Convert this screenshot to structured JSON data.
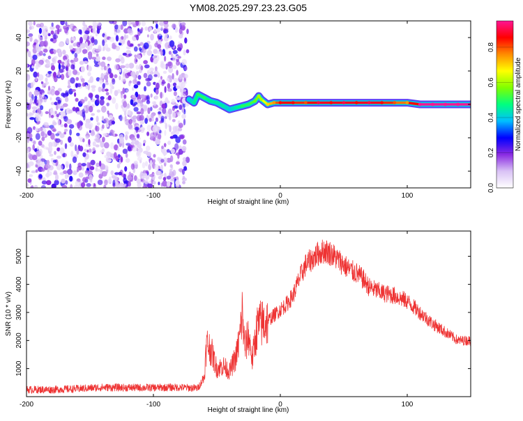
{
  "figure_title": "YM08.2025.297.23.23.G05",
  "chart_data": [
    {
      "type": "heatmap",
      "title": "YM08.2025.297.23.23.G05",
      "xlabel": "Height of straight line (km)",
      "ylabel": "Frequency (Hz)",
      "xlim": [
        -200,
        150
      ],
      "ylim": [
        -50,
        50
      ],
      "xticks": [
        -200,
        -100,
        0,
        100
      ],
      "xtick_labels": [
        "-200",
        "-100",
        "0",
        "100"
      ],
      "yticks": [
        -40,
        -20,
        0,
        20,
        40
      ],
      "ytick_labels": [
        "-40",
        "-20",
        "0",
        "20",
        "40"
      ],
      "noise_region_x": [
        -200,
        -73
      ],
      "ridge": {
        "name": "Peak frequency",
        "x": [
          -72,
          -68,
          -65,
          -60,
          -55,
          -50,
          -45,
          -40,
          -35,
          -30,
          -25,
          -20,
          -17,
          -15,
          -10,
          -5,
          0,
          10,
          20,
          30,
          40,
          50,
          60,
          70,
          80,
          90,
          100,
          110,
          120,
          130,
          140,
          150
        ],
        "y": [
          3,
          1,
          6,
          4,
          2,
          1,
          -1,
          -3,
          -2,
          -1,
          0,
          2,
          5,
          3,
          0,
          1,
          1,
          1,
          1,
          1,
          1,
          1,
          1,
          1,
          1,
          1,
          1,
          0,
          0,
          0,
          0,
          0
        ],
        "amplitude": [
          0.4,
          0.45,
          0.5,
          0.5,
          0.45,
          0.45,
          0.45,
          0.4,
          0.45,
          0.5,
          0.5,
          0.55,
          0.6,
          0.6,
          0.7,
          0.75,
          0.85,
          0.85,
          0.8,
          0.9,
          0.85,
          0.9,
          0.85,
          0.9,
          0.85,
          0.8,
          0.75,
          0.95,
          0.95,
          0.95,
          0.95,
          0.95
        ]
      },
      "colorbar": {
        "label": "Normalized spectral amplitude",
        "range": [
          0,
          0.95
        ],
        "ticks": [
          0.0,
          0.2,
          0.4,
          0.6,
          0.8
        ],
        "tick_labels": [
          "0.0",
          "0.2",
          "0.4",
          "0.6",
          "0.8"
        ],
        "colors": [
          "#ffffff",
          "#d9c2f5",
          "#8a2be2",
          "#0000ff",
          "#00bfff",
          "#00ff7f",
          "#7fff00",
          "#ffff00",
          "#ff8c00",
          "#ff0000",
          "#ff1493"
        ]
      }
    },
    {
      "type": "line",
      "xlabel": "Height of straight line (km)",
      "ylabel": "SNR (10 * v/v)",
      "xlim": [
        -200,
        150
      ],
      "ylim": [
        0,
        5900
      ],
      "xticks": [
        -200,
        -100,
        0,
        100
      ],
      "xtick_labels": [
        "-200",
        "-100",
        "0",
        "100"
      ],
      "yticks": [
        1000,
        2000,
        3000,
        4000,
        5000
      ],
      "ytick_labels": [
        "1000",
        "2000",
        "3000",
        "4000",
        "5000"
      ],
      "color": "#ee3333",
      "series": [
        {
          "name": "SNR",
          "x": [
            -200,
            -180,
            -160,
            -140,
            -120,
            -100,
            -80,
            -65,
            -60,
            -58,
            -55,
            -50,
            -45,
            -40,
            -35,
            -32,
            -30,
            -28,
            -25,
            -22,
            -20,
            -18,
            -15,
            -10,
            -5,
            0,
            5,
            10,
            15,
            20,
            25,
            30,
            35,
            40,
            45,
            50,
            55,
            60,
            65,
            70,
            80,
            90,
            100,
            110,
            115,
            120,
            130,
            140,
            150
          ],
          "y": [
            250,
            250,
            280,
            330,
            320,
            320,
            330,
            300,
            700,
            1900,
            1700,
            1000,
            1100,
            900,
            1400,
            2100,
            3000,
            1700,
            2200,
            1300,
            2000,
            2500,
            2600,
            2700,
            2900,
            3100,
            3300,
            3600,
            4200,
            4700,
            4900,
            5100,
            5200,
            5100,
            4900,
            4700,
            4500,
            4400,
            4200,
            3900,
            3700,
            3600,
            3400,
            3000,
            2800,
            2600,
            2300,
            2000,
            2000
          ]
        }
      ]
    }
  ]
}
